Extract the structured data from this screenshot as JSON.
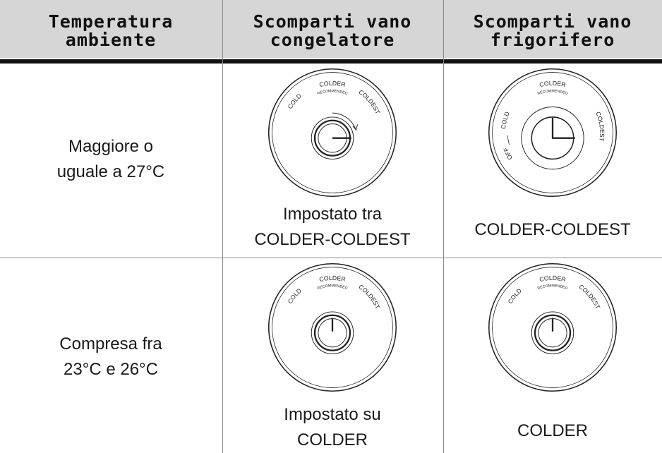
{
  "table": {
    "headers": [
      [
        "Temperatura",
        "ambiente"
      ],
      [
        "Scomparti vano",
        "congelatore"
      ],
      [
        "Scomparti vano",
        "frigorifero"
      ]
    ],
    "rows": [
      {
        "temperature": [
          "Maggiore o",
          "uguale a 27°C"
        ],
        "freezer": {
          "dial": {
            "cold": "COLD",
            "colder": "COLDER",
            "recommended": "RECOMMENDED",
            "coldest": "COLDEST"
          },
          "caption": [
            "Impostato tra",
            "COLDER-COLDEST"
          ]
        },
        "fridge": {
          "dial": {
            "off": "OFF",
            "cold": "COLD",
            "colder": "COLDER",
            "recommended": "RECOMMENDED",
            "coldest": "COLDEST"
          },
          "caption": [
            "COLDER-COLDEST"
          ]
        }
      },
      {
        "temperature": [
          "Compresa fra",
          "23°C e 26°C"
        ],
        "freezer": {
          "dial": {
            "cold": "COLD",
            "colder": "COLDER",
            "recommended": "RECOMMENDED",
            "coldest": "COLDEST"
          },
          "caption": [
            "Impostato su",
            "COLDER"
          ]
        },
        "fridge": {
          "dial": {
            "cold": "COLD",
            "colder": "COLDER",
            "recommended": "RECOMMENDED",
            "coldest": "COLDEST"
          },
          "caption": [
            "COLDER"
          ]
        }
      }
    ]
  }
}
